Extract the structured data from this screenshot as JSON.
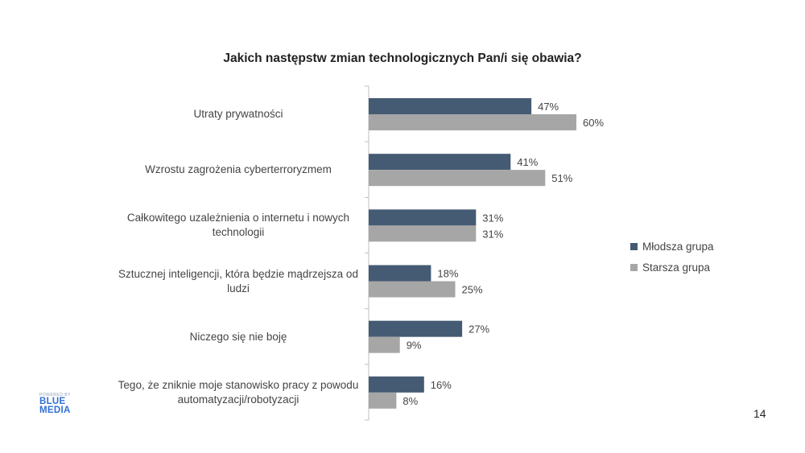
{
  "chart_data": {
    "type": "bar",
    "orientation": "horizontal",
    "title": "Jakich następstw zmian technologicznych Pan/i się obawia?",
    "categories": [
      "Utraty prywatności",
      "Wzrostu zagrożenia cyberterroryzmem",
      "Całkowitego uzależnienia o internetu i nowych technologii",
      "Sztucznej inteligencji, która będzie mądrzejsza od ludzi",
      "Niczego się nie boję",
      "Tego, że zniknie moje stanowisko pracy z powodu automatyzacji/robotyzacji"
    ],
    "series": [
      {
        "name": "Młodsza grupa",
        "color": "#455b73",
        "values": [
          47,
          41,
          31,
          18,
          27,
          16
        ]
      },
      {
        "name": "Starsza grupa",
        "color": "#a6a6a6",
        "values": [
          60,
          51,
          31,
          25,
          9,
          8
        ]
      }
    ],
    "value_suffix": "%",
    "xlim": [
      0,
      100
    ],
    "legend_position": "right",
    "grid": false
  },
  "logo": {
    "powered": "POWERED BY",
    "line1": "BLUE",
    "line2": "MEDIA"
  },
  "page_number": "14"
}
